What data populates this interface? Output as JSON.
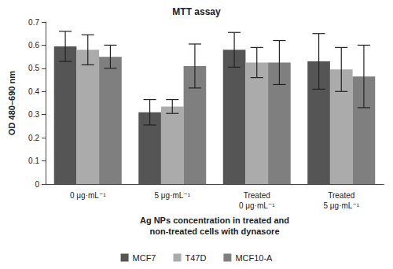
{
  "chart_data": {
    "type": "bar",
    "title": "MTT assay",
    "xlabel": "Ag NPs concentration in treated and\nnon-treated cells with dynasore",
    "ylabel": "OD 480–690 nm",
    "categories": [
      "0 μg·mL⁻¹",
      "5 μg·mL⁻¹",
      "Treated\n0 μg·mL⁻¹",
      "Treated\n5 μg·mL⁻¹"
    ],
    "series": [
      {
        "name": "MCF7",
        "color": "#555555",
        "values": [
          0.595,
          0.31,
          0.58,
          0.53
        ],
        "errors": [
          0.065,
          0.055,
          0.075,
          0.12
        ]
      },
      {
        "name": "T47D",
        "color": "#ababab",
        "values": [
          0.58,
          0.335,
          0.525,
          0.495
        ],
        "errors": [
          0.065,
          0.03,
          0.065,
          0.095
        ]
      },
      {
        "name": "MCF10-A",
        "color": "#7f7f7f",
        "values": [
          0.55,
          0.51,
          0.525,
          0.465
        ],
        "errors": [
          0.05,
          0.095,
          0.095,
          0.135
        ]
      }
    ],
    "ylim": [
      0,
      0.7
    ],
    "yticks": [
      0,
      0.1,
      0.2,
      0.3,
      0.4,
      0.5,
      0.6,
      0.7
    ],
    "grid": false,
    "legend": "bottom"
  }
}
